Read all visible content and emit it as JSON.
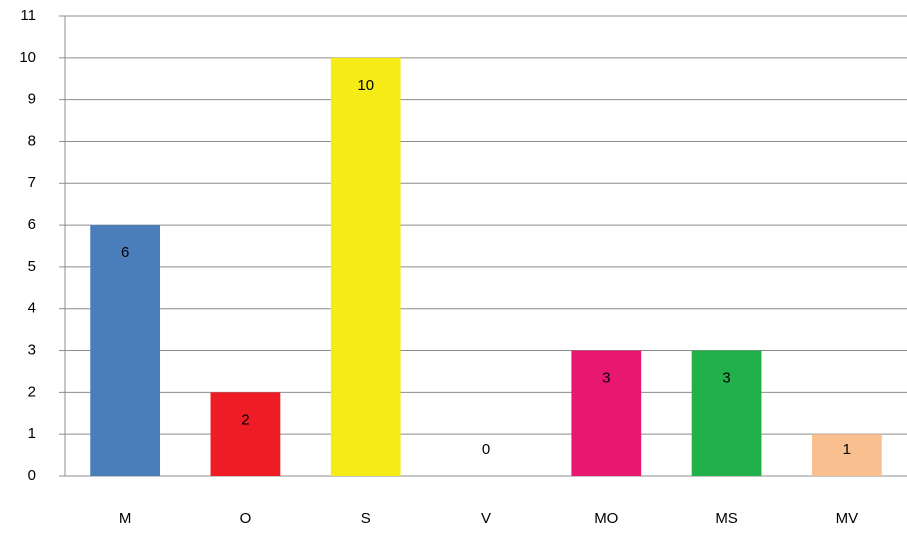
{
  "chart_data": {
    "type": "bar",
    "categories": [
      "M",
      "O",
      "S",
      "V",
      "MO",
      "MS",
      "MV"
    ],
    "values": [
      6,
      2,
      10,
      0,
      3,
      3,
      1
    ],
    "colors": [
      "#4a7ebb",
      "#ee1c24",
      "#f5ec17",
      "#8064a2",
      "#e8176f",
      "#22b04b",
      "#f9bf8f"
    ],
    "ylim": [
      0,
      11
    ],
    "yticks": [
      0,
      1,
      2,
      3,
      4,
      5,
      6,
      7,
      8,
      9,
      10,
      11
    ],
    "grid": true,
    "data_labels": true
  }
}
